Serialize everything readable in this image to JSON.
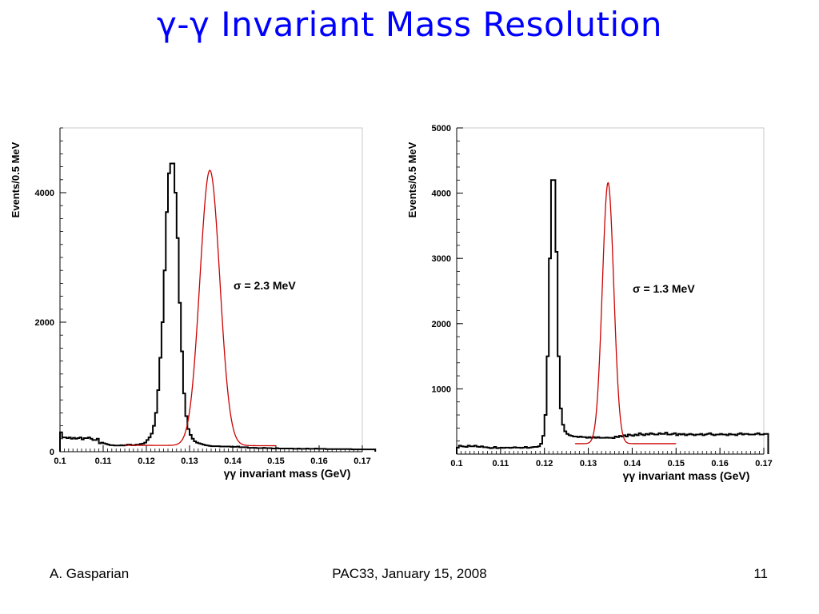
{
  "slide": {
    "title": "γ-γ Invariant Mass Resolution",
    "footer_left": "A. Gasparian",
    "footer_center": "PAC33, January 15, 2008",
    "footer_right": "11"
  },
  "colors": {
    "title": "#0000ff",
    "histogram": "#000000",
    "fit": "#cc0000",
    "frame": "#000000",
    "grid": "#c8c8c8"
  },
  "chart_data": [
    {
      "type": "histogram",
      "xlabel": "γγ invariant mass (GeV)",
      "ylabel": "Events/0.5 MeV",
      "xlim": [
        0.1,
        0.17
      ],
      "ylim": [
        0,
        5000
      ],
      "x_ticks": [
        "0.1",
        "0.11",
        "0.12",
        "0.13",
        "0.14",
        "0.15",
        "0.16",
        "0.17"
      ],
      "y_ticks": [
        0,
        2000,
        4000
      ],
      "annotation": "σ = 2.3 MeV",
      "fit": {
        "mean": 0.1347,
        "sigma": 0.0023,
        "amplitude": 4250,
        "background": [
          130,
          100,
          0.11,
          70
        ]
      },
      "series": [
        {
          "x_start": 0.1,
          "bin_width": 0.0005,
          "values": [
            300,
            220,
            220,
            210,
            220,
            200,
            215,
            200,
            210,
            220,
            190,
            210,
            210,
            220,
            200,
            180,
            180,
            200,
            130,
            140,
            130,
            120,
            110,
            100,
            100,
            95,
            95,
            95,
            100,
            95,
            100,
            110,
            110,
            100,
            100,
            110,
            110,
            120,
            125,
            140,
            180,
            220,
            280,
            400,
            600,
            950,
            1450,
            2000,
            2800,
            3700,
            4300,
            4450,
            4450,
            4000,
            3300,
            2300,
            1550,
            900,
            550,
            350,
            260,
            200,
            160,
            140,
            130,
            120,
            110,
            100,
            95,
            90,
            85,
            85,
            85,
            85,
            80,
            80,
            80,
            80,
            80,
            75,
            75,
            75,
            80,
            70,
            70,
            70,
            70,
            60,
            60,
            60,
            60,
            55,
            55,
            55,
            60,
            55,
            55,
            55,
            50,
            50,
            55,
            50,
            50,
            50,
            50,
            50,
            50,
            50,
            45,
            45,
            50,
            45,
            45,
            45,
            50,
            45,
            45,
            45,
            50,
            45,
            45,
            45,
            45,
            40,
            40,
            40,
            40,
            40,
            40,
            40,
            40,
            40,
            40,
            40,
            40,
            35,
            35,
            35,
            35,
            35,
            35,
            35,
            35,
            35,
            35,
            35
          ]
        }
      ]
    },
    {
      "type": "histogram",
      "xlabel": "γγ invariant mass (GeV)",
      "ylabel": "Events/0.5 MeV",
      "xlim": [
        0.1,
        0.17
      ],
      "ylim": [
        0,
        5000
      ],
      "x_ticks": [
        "0.1",
        "0.11",
        "0.12",
        "0.13",
        "0.14",
        "0.15",
        "0.16",
        "0.17"
      ],
      "y_ticks": [
        1000,
        2000,
        3000,
        4000,
        5000
      ],
      "annotation": "σ = 1.3 MeV",
      "fit": {
        "mean": 0.1345,
        "sigma": 0.0013,
        "amplitude": 4000,
        "background": [
          250,
          250,
          0.15,
          0
        ]
      },
      "series": [
        {
          "x_start": 0.1,
          "bin_width": 0.0005,
          "values": [
            100,
            130,
            120,
            115,
            110,
            130,
            120,
            120,
            130,
            115,
            110,
            120,
            105,
            105,
            100,
            90,
            95,
            110,
            90,
            95,
            100,
            95,
            100,
            100,
            95,
            100,
            105,
            100,
            100,
            95,
            100,
            110,
            95,
            100,
            105,
            110,
            110,
            120,
            160,
            280,
            600,
            1500,
            3000,
            4200,
            4200,
            3100,
            1500,
            700,
            450,
            350,
            310,
            290,
            280,
            270,
            270,
            260,
            270,
            260,
            260,
            250,
            260,
            250,
            260,
            250,
            260,
            250,
            250,
            250,
            255,
            250,
            250,
            245,
            270,
            260,
            280,
            270,
            290,
            270,
            300,
            290,
            280,
            300,
            290,
            320,
            300,
            290,
            310,
            300,
            320,
            310,
            300,
            300,
            320,
            310,
            310,
            330,
            300,
            300,
            310,
            320,
            290,
            310,
            300,
            310,
            290,
            300,
            310,
            300,
            290,
            300,
            300,
            310,
            290,
            300,
            310,
            320,
            300,
            290,
            300,
            300,
            310,
            300,
            300,
            290,
            310,
            300,
            300,
            290,
            310,
            320,
            300,
            310,
            310,
            300,
            300,
            300,
            310,
            320,
            300,
            300,
            310,
            310
          ]
        }
      ]
    }
  ]
}
